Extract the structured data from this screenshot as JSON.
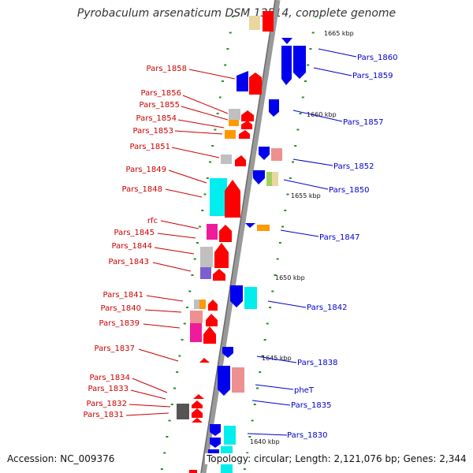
{
  "title": "Pyrobaculum arsenaticum DSM 13514, complete genome",
  "accession": "Accession: NC_009376",
  "topology": "Topology: circular; Length: 2,121,076 bp; Genes: 2,344",
  "scale_ticks": [
    "1665 kbp",
    "1660 kbp",
    "1655 kbp",
    "1650 kbp",
    "1645 kbp",
    "1640 kbp"
  ],
  "left_labels": [
    "Pars_1858",
    "Pars_1856",
    "Pars_1855",
    "Pars_1854",
    "Pars_1853",
    "Pars_1851",
    "Pars_1849",
    "Pars_1848",
    "rfc",
    "Pars_1845",
    "Pars_1844",
    "Pars_1843",
    "Pars_1841",
    "Pars_1840",
    "Pars_1839",
    "Pars_1837",
    "Pars_1834",
    "Pars_1833",
    "Pars_1832",
    "Pars_1831"
  ],
  "right_labels": [
    "Pars_1860",
    "Pars_1859",
    "Pars_1857",
    "Pars_1852",
    "Pars_1850",
    "Pars_1847",
    "Pars_1842",
    "Pars_1838",
    "pheT",
    "Pars_1835",
    "Pars_1830"
  ],
  "colors": {
    "left_label": "#cc0000",
    "right_label": "#0000cc",
    "backbone": "#808080",
    "forward": "#ff0000",
    "reverse": "#0000ee"
  }
}
